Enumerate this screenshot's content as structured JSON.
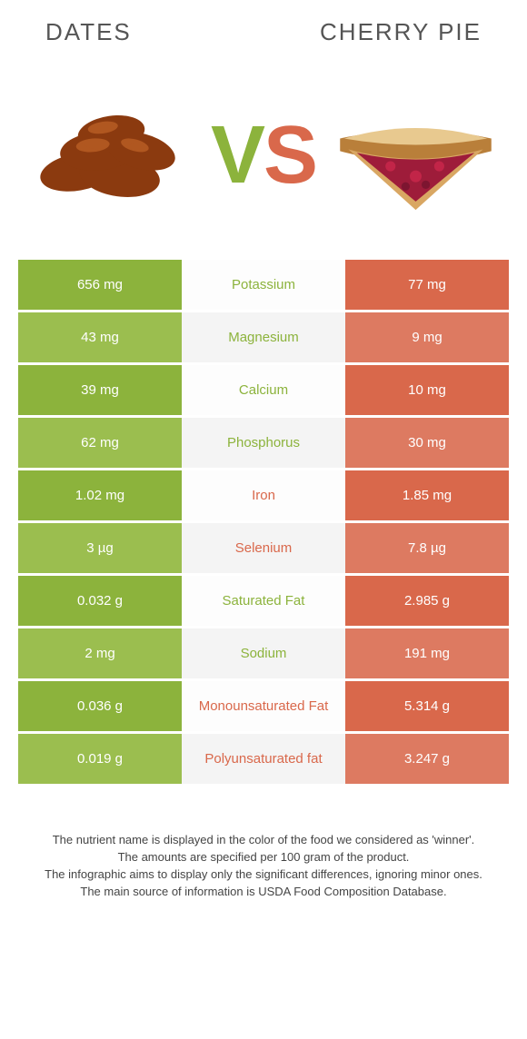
{
  "header": {
    "left_title": "Dates",
    "right_title": "Cherry Pie"
  },
  "vs": {
    "v": "V",
    "s": "S"
  },
  "colors": {
    "left_bg_a": "#8cb33c",
    "left_bg_b": "#9bbe4f",
    "right_bg_a": "#d9684b",
    "right_bg_b": "#dd7a61",
    "mid_bg_a": "#fdfdfd",
    "mid_bg_b": "#f4f4f4",
    "mid_text_left": "#8cb33c",
    "mid_text_right": "#d9684b"
  },
  "rows": [
    {
      "label": "Potassium",
      "left": "656 mg",
      "right": "77 mg",
      "winner": "left"
    },
    {
      "label": "Magnesium",
      "left": "43 mg",
      "right": "9 mg",
      "winner": "left"
    },
    {
      "label": "Calcium",
      "left": "39 mg",
      "right": "10 mg",
      "winner": "left"
    },
    {
      "label": "Phosphorus",
      "left": "62 mg",
      "right": "30 mg",
      "winner": "left"
    },
    {
      "label": "Iron",
      "left": "1.02 mg",
      "right": "1.85 mg",
      "winner": "right"
    },
    {
      "label": "Selenium",
      "left": "3 µg",
      "right": "7.8 µg",
      "winner": "right"
    },
    {
      "label": "Saturated Fat",
      "left": "0.032 g",
      "right": "2.985 g",
      "winner": "left"
    },
    {
      "label": "Sodium",
      "left": "2 mg",
      "right": "191 mg",
      "winner": "left"
    },
    {
      "label": "Monounsaturated Fat",
      "left": "0.036 g",
      "right": "5.314 g",
      "winner": "right"
    },
    {
      "label": "Polyunsaturated fat",
      "left": "0.019 g",
      "right": "3.247 g",
      "winner": "right"
    }
  ],
  "footer": {
    "line1": "The nutrient name is displayed in the color of the food we considered as 'winner'.",
    "line2": "The amounts are specified per 100 gram of the product.",
    "line3": "The infographic aims to display only the significant differences, ignoring minor ones.",
    "line4": "The main source of information is USDA Food Composition Database."
  }
}
